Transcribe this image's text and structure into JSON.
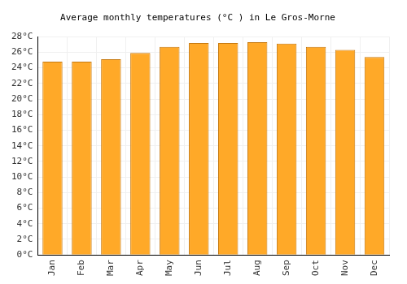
{
  "chart_data": {
    "type": "bar",
    "title": "Average monthly temperatures (°C ) in Le Gros-Morne",
    "categories": [
      "Jan",
      "Feb",
      "Mar",
      "Apr",
      "May",
      "Jun",
      "Jul",
      "Aug",
      "Sep",
      "Oct",
      "Nov",
      "Dec"
    ],
    "values": [
      24.8,
      24.8,
      25.1,
      25.9,
      26.7,
      27.2,
      27.2,
      27.3,
      27.1,
      26.7,
      26.3,
      25.4
    ],
    "color": "#ffa928",
    "ylim": [
      0,
      28
    ],
    "yticks": [
      {
        "value": 0,
        "label": "0°C"
      },
      {
        "value": 2,
        "label": "2°C"
      },
      {
        "value": 4,
        "label": "4°C"
      },
      {
        "value": 6,
        "label": "6°C"
      },
      {
        "value": 8,
        "label": "8°C"
      },
      {
        "value": 10,
        "label": "10°C"
      },
      {
        "value": 12,
        "label": "12°C"
      },
      {
        "value": 14,
        "label": "14°C"
      },
      {
        "value": 16,
        "label": "16°C"
      },
      {
        "value": 18,
        "label": "18°C"
      },
      {
        "value": 20,
        "label": "20°C"
      },
      {
        "value": 22,
        "label": "22°C"
      },
      {
        "value": 24,
        "label": "24°C"
      },
      {
        "value": 26,
        "label": "26°C"
      },
      {
        "value": 28,
        "label": "28°C"
      }
    ],
    "grid": true
  }
}
